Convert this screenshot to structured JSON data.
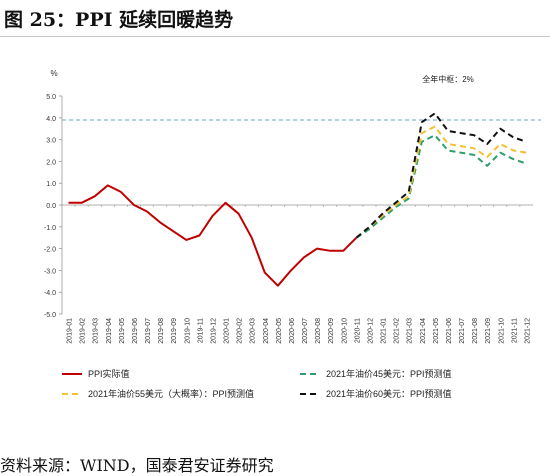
{
  "page": {
    "title": "图 25：PPI  延续回暖趋势",
    "source": "资料来源：WIND，国泰君安证券研究"
  },
  "chart_data": {
    "type": "line",
    "ylabel": "%",
    "ylim": [
      -5.0,
      5.0
    ],
    "yticks": [
      "5.0",
      "4.0",
      "3.0",
      "2.0",
      "1.0",
      "0.0",
      "-1.0",
      "-2.0",
      "-3.0",
      "-4.0",
      "-5.0"
    ],
    "categories": [
      "2019-01",
      "2019-02",
      "2019-03",
      "2019-04",
      "2019-05",
      "2019-06",
      "2019-07",
      "2019-08",
      "2019-09",
      "2019-10",
      "2019-11",
      "2019-12",
      "2020-01",
      "2020-02",
      "2020-03",
      "2020-04",
      "2020-05",
      "2020-06",
      "2020-07",
      "2020-08",
      "2020-09",
      "2020-10",
      "2020-11",
      "2020-12",
      "2021-01",
      "2021-02",
      "2021-03",
      "2021-04",
      "2021-05",
      "2021-06",
      "2021-07",
      "2021-08",
      "2021-09",
      "2021-10",
      "2021-11",
      "2021-12"
    ],
    "annotation": "全年中枢：2%",
    "reference_line": {
      "value": 3.9,
      "color": "#6aa9c4"
    },
    "series": [
      {
        "name": "PPI实际值",
        "color": "#c00000",
        "dash": "none",
        "values": [
          0.1,
          0.1,
          0.4,
          0.9,
          0.6,
          0.0,
          -0.3,
          -0.8,
          -1.2,
          -1.6,
          -1.4,
          -0.5,
          0.1,
          -0.4,
          -1.5,
          -3.1,
          -3.7,
          -3.0,
          -2.4,
          -2.0,
          -2.1,
          -2.1,
          -1.5,
          null,
          null,
          null,
          null,
          null,
          null,
          null,
          null,
          null,
          null,
          null,
          null,
          null
        ]
      },
      {
        "name": "2021年油价45美元：PPI预测值",
        "color": "#2e9e6c",
        "dash": "6,4",
        "values": [
          null,
          null,
          null,
          null,
          null,
          null,
          null,
          null,
          null,
          null,
          null,
          null,
          null,
          null,
          null,
          null,
          null,
          null,
          null,
          null,
          null,
          null,
          -1.5,
          -1.1,
          -0.6,
          -0.1,
          0.3,
          2.9,
          3.2,
          2.5,
          2.4,
          2.3,
          1.8,
          2.4,
          2.1,
          1.9
        ]
      },
      {
        "name": "2021年油价55美元（大概率）：PPI预测值",
        "color": "#f2c230",
        "dash": "6,4",
        "values": [
          null,
          null,
          null,
          null,
          null,
          null,
          null,
          null,
          null,
          null,
          null,
          null,
          null,
          null,
          null,
          null,
          null,
          null,
          null,
          null,
          null,
          null,
          -1.5,
          -1.0,
          -0.5,
          0.0,
          0.4,
          3.3,
          3.6,
          2.8,
          2.7,
          2.6,
          2.2,
          2.8,
          2.5,
          2.4
        ]
      },
      {
        "name": "2021年油价60美元：PPI预测值",
        "color": "#111111",
        "dash": "6,4",
        "values": [
          null,
          null,
          null,
          null,
          null,
          null,
          null,
          null,
          null,
          null,
          null,
          null,
          null,
          null,
          null,
          null,
          null,
          null,
          null,
          null,
          null,
          null,
          -1.5,
          -1.0,
          -0.4,
          0.1,
          0.6,
          3.8,
          4.2,
          3.4,
          3.3,
          3.2,
          2.8,
          3.5,
          3.1,
          2.9
        ]
      }
    ],
    "legend_position": "bottom",
    "grid": false
  }
}
